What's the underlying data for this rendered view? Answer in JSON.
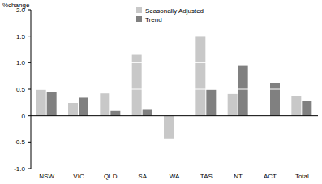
{
  "chart_data": {
    "type": "bar",
    "y_label": "%change",
    "categories": [
      "NSW",
      "VIC",
      "QLD",
      "SA",
      "WA",
      "TAS",
      "NT",
      "ACT",
      "Total"
    ],
    "series": [
      {
        "name": "Seasonally Adjusted",
        "color": "#c8c8c8",
        "values": [
          0.49,
          0.24,
          0.42,
          1.15,
          -0.43,
          1.49,
          0.41,
          0,
          0.37
        ]
      },
      {
        "name": "Trend",
        "color": "#808080",
        "values": [
          0.44,
          0.34,
          0.09,
          0.11,
          0,
          0.49,
          0.95,
          0.62,
          0.28
        ]
      }
    ],
    "ylim": [
      -1,
      2
    ],
    "yticks": [
      {
        "value": -1,
        "label": "-1.0"
      },
      -0.5,
      0,
      0.5,
      {
        "value": 1,
        "label": "1.0"
      },
      1.5,
      {
        "value": 2,
        "label": "2.0"
      }
    ],
    "grid": true,
    "legend": "top"
  }
}
